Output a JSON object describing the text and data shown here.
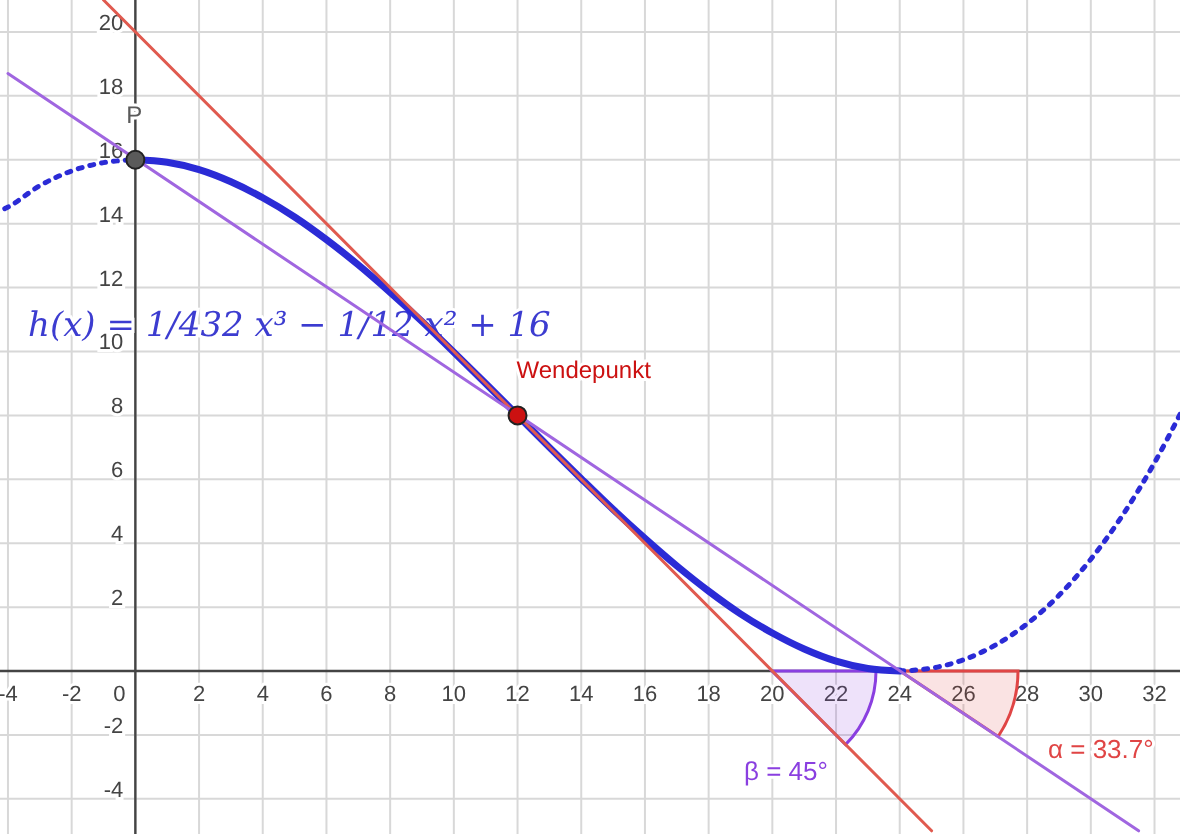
{
  "chart_data": {
    "type": "line",
    "xlim": [
      -4.25,
      32.8
    ],
    "ylim": [
      -5.1,
      21
    ],
    "xticks": [
      -4,
      -2,
      0,
      2,
      4,
      6,
      8,
      10,
      12,
      14,
      16,
      18,
      20,
      22,
      24,
      26,
      28,
      30,
      32
    ],
    "yticks": [
      -4,
      -2,
      2,
      4,
      6,
      8,
      10,
      12,
      14,
      16,
      18,
      20
    ],
    "grid": true,
    "legend": false,
    "series": [
      {
        "color": "#2b2bd6",
        "line_style": "dotted",
        "x": [
          -4.1,
          -4,
          -3,
          -2,
          -1,
          0
        ],
        "values": [
          14.47,
          14.52,
          15.19,
          15.65,
          15.91,
          16
        ]
      },
      {
        "color": "#2b2bd6",
        "line_style": "solid",
        "x": [
          0,
          1,
          2,
          3,
          4,
          5,
          6,
          7,
          8,
          9,
          10,
          11,
          12,
          13,
          14,
          15,
          16,
          17,
          18,
          19,
          20,
          21,
          22,
          23,
          24
        ],
        "values": [
          16,
          15.92,
          15.69,
          15.31,
          14.81,
          14.21,
          13.5,
          12.71,
          11.85,
          10.94,
          9.98,
          9,
          8,
          7,
          6.02,
          5.06,
          4.15,
          3.29,
          2.5,
          1.79,
          1.19,
          0.69,
          0.31,
          0.08,
          0
        ]
      },
      {
        "color": "#2b2bd6",
        "line_style": "dotted",
        "x": [
          24,
          25,
          26,
          27,
          28,
          29,
          30,
          31,
          32,
          32.8
        ],
        "values": [
          0,
          0.09,
          0.35,
          0.81,
          1.48,
          2.37,
          3.5,
          4.88,
          6.52,
          8.03
        ]
      },
      {
        "color": "#e05a4f",
        "line_style": "solid",
        "x": [
          -1,
          25
        ],
        "values": [
          21,
          -5
        ]
      },
      {
        "color": "#a066e0",
        "line_style": "solid",
        "x": [
          -4,
          31.5
        ],
        "values": [
          18.7,
          -5
        ]
      },
      {
        "type": "scatter",
        "name": "P",
        "color": "#5a5a5a",
        "x": [
          0
        ],
        "values": [
          16
        ]
      },
      {
        "type": "scatter",
        "name": "Wendepunkt",
        "color": "#cc1111",
        "x": [
          12
        ],
        "values": [
          8
        ]
      }
    ],
    "annotations": [
      "h(x) = 1/432 x³ − 1/12 x² + 16",
      "β = 45°",
      "α = 33.7°"
    ]
  }
}
